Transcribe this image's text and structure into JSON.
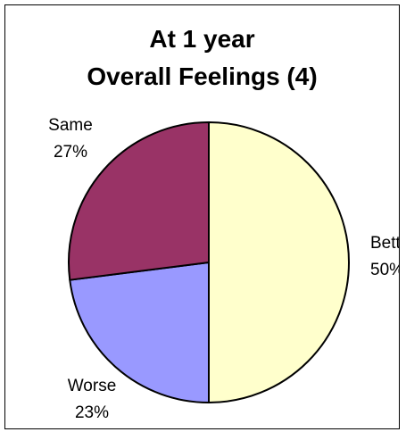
{
  "chart_data": {
    "type": "pie",
    "title": "At 1 year",
    "subtitle": "Overall Feelings (4)",
    "slices": [
      {
        "name": "Better",
        "label": "Bette",
        "value": 50,
        "value_label": "50%",
        "color": "#FFFFCC"
      },
      {
        "name": "Worse",
        "label": "Worse",
        "value": 23,
        "value_label": "23%",
        "color": "#9999FF"
      },
      {
        "name": "Same",
        "label": "Same",
        "value": 27,
        "value_label": "27%",
        "color": "#993366"
      }
    ],
    "legend": "none"
  }
}
